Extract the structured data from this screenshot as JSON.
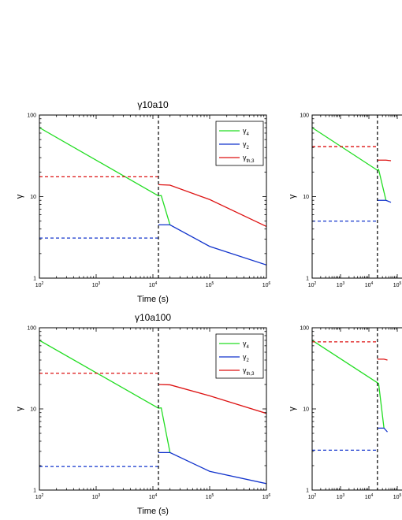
{
  "chart_data": [
    {
      "type": "line",
      "title": "γ10a10",
      "xlabel": "Time (s)",
      "ylabel": "γ",
      "xscale": "log",
      "yscale": "log",
      "xlim": [
        100,
        1000000
      ],
      "ylim": [
        1,
        100
      ],
      "vline_x": 12500,
      "legend": {
        "placement": "top-right",
        "labels": [
          {
            "base": "γ",
            "sub": "4",
            "color": "#22dd22"
          },
          {
            "base": "γ",
            "sub": "2",
            "color": "#1133cc"
          },
          {
            "base": "γ",
            "sub": "th,3",
            "color": "#dd1111"
          }
        ]
      },
      "series": [
        {
          "name": "γ4",
          "color": "#22dd22",
          "style": "solid",
          "points": [
            [
              100,
              70
            ],
            [
              12500,
              10.2
            ],
            [
              14000,
              10.3
            ],
            [
              20000,
              4.5
            ]
          ]
        },
        {
          "name": "γ2",
          "color": "#1133cc",
          "style": "solid",
          "points": [
            [
              12500,
              4.5
            ],
            [
              20000,
              4.5
            ],
            [
              100000,
              2.45
            ],
            [
              1000000,
              1.45
            ]
          ]
        },
        {
          "name": "γth,3",
          "color": "#dd1111",
          "style": "solid",
          "points": [
            [
              12500,
              14
            ],
            [
              20000,
              13.8
            ],
            [
              100000,
              9.2
            ],
            [
              1000000,
              4.3
            ]
          ]
        },
        {
          "name": "γth,3 (dashed)",
          "color": "#dd1111",
          "style": "dashed",
          "points": [
            [
              100,
              17.5
            ],
            [
              12500,
              17.5
            ]
          ]
        },
        {
          "name": "γ2 (dashed)",
          "color": "#1133cc",
          "style": "dashed",
          "points": [
            [
              100,
              3.1
            ],
            [
              12500,
              3.1
            ]
          ]
        }
      ]
    },
    {
      "type": "line",
      "title": "",
      "xlabel": "",
      "ylabel": "γ",
      "xscale": "log",
      "yscale": "log",
      "xlim": [
        100,
        1000000
      ],
      "ylim": [
        1,
        100
      ],
      "vline_x": 20000,
      "series": [
        {
          "name": "γ4",
          "color": "#22dd22",
          "style": "solid",
          "points": [
            [
              100,
              70
            ],
            [
              20000,
              21
            ],
            [
              22000,
              21.5
            ],
            [
              40000,
              9
            ]
          ]
        },
        {
          "name": "γ2",
          "color": "#1133cc",
          "style": "solid",
          "points": [
            [
              20000,
              9
            ],
            [
              40000,
              9
            ],
            [
              60000,
              8.5
            ]
          ]
        },
        {
          "name": "γth,3",
          "color": "#dd1111",
          "style": "solid",
          "points": [
            [
              20000,
              28
            ],
            [
              40000,
              28
            ],
            [
              60000,
              27.5
            ]
          ]
        },
        {
          "name": "γth,3 (dashed)",
          "color": "#dd1111",
          "style": "dashed",
          "points": [
            [
              100,
              41
            ],
            [
              20000,
              41
            ]
          ]
        },
        {
          "name": "γ2 (dashed)",
          "color": "#1133cc",
          "style": "dashed",
          "points": [
            [
              100,
              5
            ],
            [
              20000,
              5
            ]
          ]
        }
      ]
    },
    {
      "type": "line",
      "title": "γ10a100",
      "xlabel": "Time (s)",
      "ylabel": "γ",
      "xscale": "log",
      "yscale": "log",
      "xlim": [
        100,
        1000000
      ],
      "ylim": [
        1,
        100
      ],
      "vline_x": 12500,
      "legend": {
        "placement": "top-right",
        "labels": [
          {
            "base": "γ",
            "sub": "4",
            "color": "#22dd22"
          },
          {
            "base": "γ",
            "sub": "2",
            "color": "#1133cc"
          },
          {
            "base": "γ",
            "sub": "th,3",
            "color": "#dd1111"
          }
        ]
      },
      "series": [
        {
          "name": "γ4",
          "color": "#22dd22",
          "style": "solid",
          "points": [
            [
              100,
              70
            ],
            [
              12500,
              10.2
            ],
            [
              14000,
              10.3
            ],
            [
              20000,
              2.9
            ]
          ]
        },
        {
          "name": "γ2",
          "color": "#1133cc",
          "style": "solid",
          "points": [
            [
              12500,
              2.9
            ],
            [
              20000,
              2.9
            ],
            [
              100000,
              1.7
            ],
            [
              1000000,
              1.2
            ]
          ]
        },
        {
          "name": "γth,3",
          "color": "#dd1111",
          "style": "solid",
          "points": [
            [
              12500,
              20
            ],
            [
              20000,
              19.8
            ],
            [
              100000,
              14.5
            ],
            [
              1000000,
              8.8
            ]
          ]
        },
        {
          "name": "γth,3 (dashed)",
          "color": "#dd1111",
          "style": "dashed",
          "points": [
            [
              100,
              27.5
            ],
            [
              12500,
              27.5
            ]
          ]
        },
        {
          "name": "γ2 (dashed)",
          "color": "#1133cc",
          "style": "dashed",
          "points": [
            [
              100,
              1.95
            ],
            [
              12500,
              1.95
            ]
          ]
        }
      ]
    },
    {
      "type": "line",
      "title": "",
      "xlabel": "",
      "ylabel": "γ",
      "xscale": "log",
      "yscale": "log",
      "xlim": [
        100,
        1000000
      ],
      "ylim": [
        1,
        100
      ],
      "vline_x": 20000,
      "series": [
        {
          "name": "γ4",
          "color": "#22dd22",
          "style": "solid",
          "points": [
            [
              100,
              70
            ],
            [
              20000,
              21
            ],
            [
              22000,
              20.5
            ],
            [
              34000,
              5.8
            ]
          ]
        },
        {
          "name": "γ2",
          "color": "#1133cc",
          "style": "solid",
          "points": [
            [
              20000,
              5.8
            ],
            [
              34000,
              5.8
            ],
            [
              45000,
              5.2
            ]
          ]
        },
        {
          "name": "γth,3",
          "color": "#dd1111",
          "style": "solid",
          "points": [
            [
              20000,
              41
            ],
            [
              34000,
              41
            ],
            [
              45000,
              40
            ]
          ]
        },
        {
          "name": "γth,3 (dashed)",
          "color": "#dd1111",
          "style": "dashed",
          "points": [
            [
              100,
              67
            ],
            [
              20000,
              67
            ]
          ]
        },
        {
          "name": "γ2 (dashed)",
          "color": "#1133cc",
          "style": "dashed",
          "points": [
            [
              100,
              3.1
            ],
            [
              20000,
              3.1
            ]
          ]
        }
      ]
    }
  ]
}
